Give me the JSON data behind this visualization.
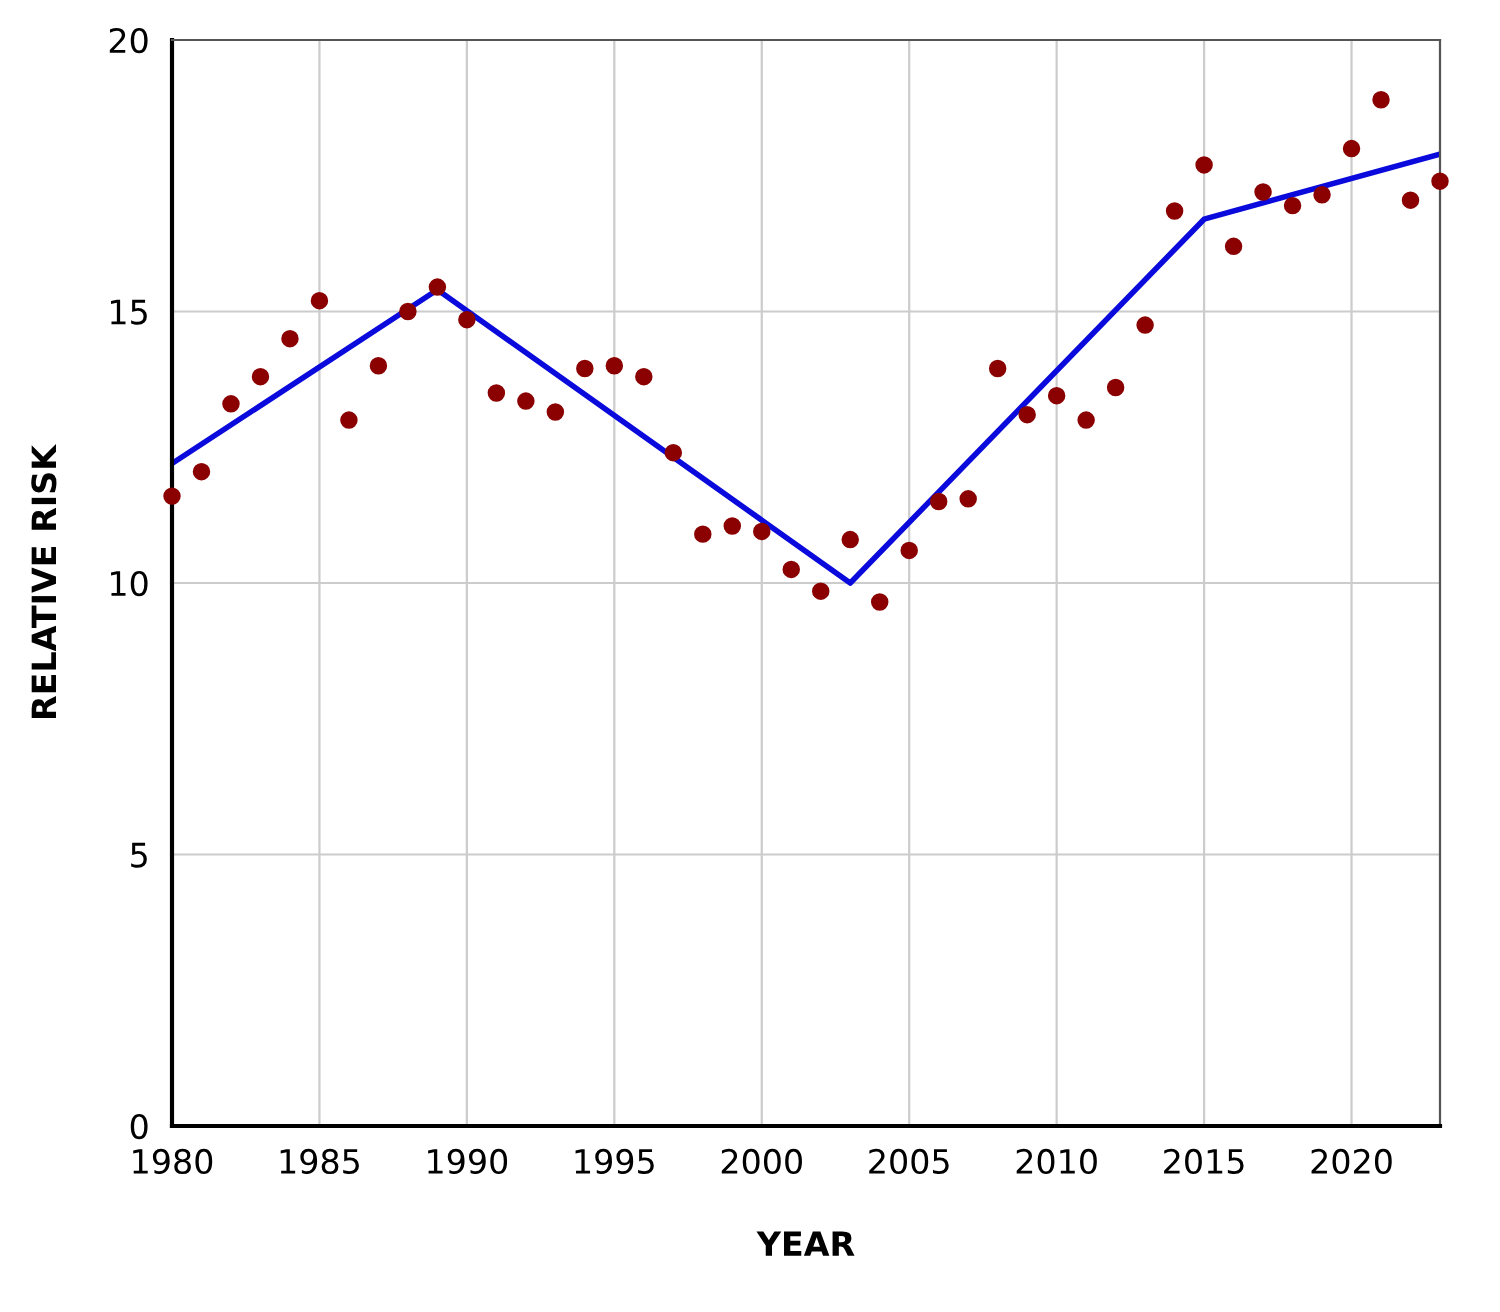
{
  "chart_data": {
    "type": "scatter",
    "xlabel": "YEAR",
    "ylabel": "RELATIVE RISK",
    "xlim": [
      1980,
      2023
    ],
    "ylim": [
      0,
      20
    ],
    "xticks": [
      1980,
      1985,
      1990,
      1995,
      2000,
      2005,
      2010,
      2015,
      2020
    ],
    "yticks": [
      0,
      5,
      10,
      15,
      20
    ],
    "grid": true,
    "legend": false,
    "series": [
      {
        "color": "#8b0000",
        "marker": "circle",
        "x": [
          1980,
          1981,
          1982,
          1983,
          1984,
          1985,
          1986,
          1987,
          1988,
          1989,
          1990,
          1991,
          1992,
          1993,
          1994,
          1995,
          1996,
          1997,
          1998,
          1999,
          2000,
          2001,
          2002,
          2003,
          2004,
          2005,
          2006,
          2007,
          2008,
          2009,
          2010,
          2011,
          2012,
          2013,
          2014,
          2015,
          2016,
          2017,
          2018,
          2019,
          2020,
          2021,
          2022,
          2023
        ],
        "values": [
          11.6,
          12.05,
          13.3,
          13.8,
          14.5,
          15.2,
          13.0,
          14.0,
          15.0,
          15.45,
          14.85,
          13.5,
          13.35,
          13.15,
          13.95,
          14.0,
          13.8,
          12.4,
          10.9,
          11.05,
          10.95,
          10.25,
          9.85,
          10.8,
          9.65,
          10.6,
          11.5,
          11.55,
          13.95,
          13.1,
          13.45,
          13.0,
          13.6,
          14.75,
          16.85,
          17.7,
          16.2,
          17.2,
          16.95,
          17.15,
          18.0,
          18.9,
          17.05,
          17.4
        ]
      },
      {
        "type": "line",
        "color": "#0a0adc",
        "marker": "none",
        "line_style": "solid",
        "x": [
          1980,
          1989,
          2003,
          2015,
          2023
        ],
        "values": [
          12.2,
          15.4,
          10.0,
          16.7,
          17.9
        ]
      }
    ]
  }
}
